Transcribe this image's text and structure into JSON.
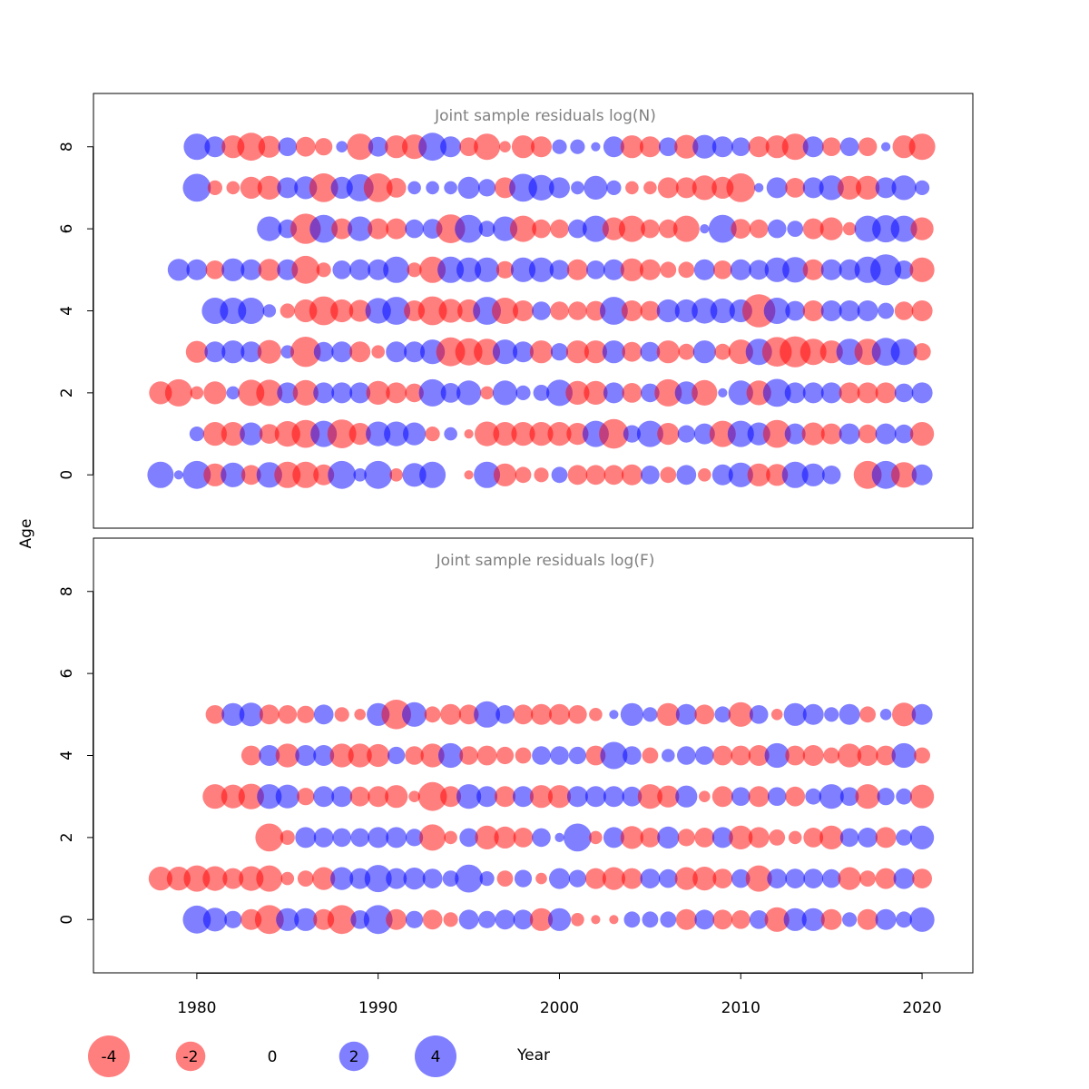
{
  "chart_data": {
    "type": "scatter",
    "style": "bubble",
    "xlabel": "Year",
    "ylabel": "Age",
    "xlim": [
      1974.3,
      2022.8
    ],
    "ylim": [
      -1.3,
      9.3
    ],
    "xticks": [
      "1980",
      "1990",
      "2000",
      "2010",
      "2020"
    ],
    "yticks": [
      "0",
      "2",
      "4",
      "6",
      "8"
    ],
    "colors": {
      "negative": "#ff0000",
      "positive": "#0000ff",
      "opacity": 0.5,
      "frame": "#000000",
      "title": "#808080"
    },
    "years_start": 1977,
    "years_end": 2020,
    "legend": {
      "placement": "bottom",
      "entries": [
        {
          "value": -4,
          "label": "-4"
        },
        {
          "value": -2,
          "label": "-2"
        },
        {
          "value": 0,
          "label": "0"
        },
        {
          "value": 2,
          "label": "2"
        },
        {
          "value": 4,
          "label": "4"
        }
      ]
    },
    "panels": [
      {
        "title": "Joint sample residuals log(N)",
        "ages": [
          0,
          1,
          2,
          3,
          4,
          5,
          6,
          7,
          8
        ],
        "residuals": [
          [
            1.6,
            0.2,
            1.8,
            -1.2,
            1.4,
            -0.9,
            1.5,
            -1.6,
            -1.6,
            -1.0,
            1.8,
            0.4,
            1.8,
            -0.4,
            1.3,
            1.6,
            0.0,
            -0.2,
            1.6,
            -1.2,
            -0.6,
            -0.5,
            0.6,
            -0.9,
            -0.9,
            -0.9,
            -1.0,
            0.8,
            -0.6,
            0.9,
            -0.4,
            1.0,
            1.4,
            -1.2,
            -1.1,
            1.6,
            1.2,
            0.8,
            0.0,
            -1.8,
            1.8,
            -1.5,
            1.0
          ],
          [
            0.5,
            -1.3,
            -1.3,
            1.2,
            -0.9,
            -1.5,
            -1.8,
            1.6,
            -1.9,
            -1.1,
            1.4,
            1.4,
            1.2,
            -0.5,
            0.4,
            -0.2,
            -1.4,
            -1.3,
            -1.3,
            -1.3,
            -1.3,
            -1.1,
            1.6,
            -2.0,
            0.7,
            1.6,
            -1.1,
            0.7,
            1.0,
            -1.6,
            1.6,
            1.2,
            -1.8,
            1.0,
            -1.2,
            -1.0,
            1.0,
            -0.8,
            1.0,
            0.8,
            -1.3
          ],
          [
            -1.2,
            -1.7,
            -0.4,
            -1.2,
            0.4,
            -1.6,
            -1.6,
            1.0,
            -1.5,
            1.0,
            1.0,
            1.0,
            -1.3,
            -1.0,
            -0.8,
            1.7,
            0.9,
            1.4,
            -0.4,
            1.4,
            0.5,
            0.6,
            1.6,
            -1.3,
            -1.3,
            1.0,
            -0.9,
            0.8,
            -1.7,
            1.2,
            -1.5,
            0.2,
            1.4,
            -1.4,
            1.8,
            1.0,
            1.0,
            1.0,
            -1.0,
            -1.0,
            -1.0,
            0.8,
            1.0
          ],
          [
            -1.1,
            1.0,
            1.2,
            1.0,
            -1.3,
            0.4,
            -2.1,
            0.9,
            1.0,
            -1.0,
            -0.4,
            1.0,
            1.0,
            1.4,
            -1.9,
            -1.7,
            -1.6,
            1.4,
            1.0,
            -1.2,
            0.7,
            -1.2,
            -1.2,
            1.2,
            -0.9,
            0.9,
            -1.2,
            -0.6,
            1.2,
            -0.6,
            -1.4,
            1.6,
            -2.0,
            -2.2,
            -1.6,
            -1.2,
            1.6,
            -1.6,
            1.8,
            1.6,
            -0.7
          ],
          [
            1.6,
            1.6,
            1.6,
            0.4,
            -0.5,
            -1.2,
            -1.9,
            -1.2,
            -1.1,
            1.5,
            1.8,
            -1.0,
            -1.9,
            -1.3,
            -1.2,
            1.8,
            -1.6,
            -1.0,
            0.8,
            -0.8,
            -0.8,
            -0.9,
            1.8,
            -1.0,
            -0.9,
            1.2,
            1.2,
            1.5,
            1.4,
            1.2,
            -2.5,
            1.6,
            0.9,
            -1.0,
            1.0,
            1.0,
            1.0,
            0.6,
            -0.8,
            -1.0
          ],
          [
            1.1,
            1.0,
            -0.8,
            1.2,
            1.0,
            -1.1,
            1.0,
            -1.8,
            -0.5,
            0.8,
            1.0,
            1.0,
            1.6,
            -0.5,
            -1.6,
            1.6,
            1.4,
            1.4,
            -0.7,
            1.4,
            1.4,
            0.9,
            -1.0,
            0.8,
            1.0,
            -1.2,
            -1.0,
            -0.6,
            -0.6,
            1.0,
            -0.8,
            1.0,
            0.9,
            1.4,
            1.5,
            -1.0,
            1.0,
            1.0,
            1.6,
            2.2,
            0.8,
            -1.4
          ],
          [
            1.4,
            0.8,
            -2.1,
            1.8,
            -1.0,
            1.4,
            -1.0,
            -1.0,
            0.8,
            0.9,
            -1.9,
            1.8,
            0.6,
            1.4,
            -1.6,
            -0.8,
            -0.8,
            0.8,
            1.6,
            -1.2,
            -1.6,
            -0.8,
            -0.8,
            -1.6,
            0.2,
            1.8,
            -0.9,
            -0.8,
            0.8,
            0.6,
            -1.0,
            -1.2,
            -0.4,
            1.6,
            1.7,
            1.6,
            -1.2
          ],
          [
            1.8,
            -0.5,
            -0.4,
            -1.1,
            -1.3,
            1.0,
            1.2,
            -1.9,
            1.1,
            1.7,
            -1.9,
            -0.9,
            0.4,
            0.4,
            0.4,
            1.1,
            0.7,
            -1.0,
            1.8,
            1.5,
            1.0,
            0.4,
            1.3,
            0.5,
            -0.4,
            -0.4,
            -1.0,
            -1.0,
            -1.4,
            -1.1,
            -1.9,
            0.2,
            1.0,
            -0.9,
            1.0,
            1.4,
            -1.3,
            -1.3,
            1.0,
            1.4,
            0.5
          ],
          [
            1.6,
            1.0,
            -1.2,
            -1.8,
            -1.1,
            0.8,
            -0.9,
            -0.7,
            0.3,
            -1.6,
            0.9,
            -1.2,
            -1.4,
            1.8,
            1.0,
            -0.8,
            -1.6,
            -0.3,
            -1.2,
            -1.0,
            0.5,
            0.5,
            0.2,
            1.0,
            -1.2,
            -1.0,
            0.8,
            -1.3,
            1.3,
            1.0,
            0.8,
            -1.0,
            -1.2,
            -1.6,
            1.0,
            -0.8,
            0.8,
            -0.8,
            0.2,
            -1.2,
            -1.6
          ]
        ]
      },
      {
        "title": "Joint sample residuals log(F)",
        "ages": [
          0,
          1,
          2,
          3,
          4,
          5
        ],
        "residuals": [
          [
            1.8,
            1.3,
            0.7,
            -1.0,
            -1.9,
            1.2,
            1.2,
            -1.0,
            -1.9,
            0.8,
            1.9,
            -1.0,
            0.7,
            -0.9,
            -0.5,
            0.9,
            0.7,
            0.9,
            0.9,
            -1.2,
            1.2,
            -0.4,
            -0.2,
            -0.2,
            0.6,
            0.6,
            0.6,
            -1.0,
            0.9,
            -0.9,
            -0.8,
            0.8,
            -1.4,
            1.2,
            1.2,
            -1.0,
            0.5,
            -1.0,
            1.0,
            0.6,
            1.4
          ],
          [
            -1.3,
            -1.3,
            -1.6,
            -1.4,
            -1.0,
            -1.4,
            -1.6,
            -0.4,
            -0.6,
            -1.2,
            1.2,
            1.0,
            1.7,
            1.0,
            1.1,
            0.9,
            0.6,
            1.8,
            0.5,
            -0.6,
            0.7,
            -0.3,
            1.0,
            0.7,
            -1.0,
            -1.2,
            -1.0,
            0.9,
            0.8,
            -1.2,
            -1.3,
            -0.9,
            0.8,
            -1.6,
            0.9,
            0.9,
            0.9,
            0.8,
            -1.2,
            -0.6,
            -1.0,
            1.0,
            -0.9
          ],
          [
            -1.8,
            -0.5,
            1.0,
            0.9,
            0.8,
            0.8,
            1.0,
            1.0,
            0.7,
            -1.6,
            -0.4,
            0.8,
            -1.3,
            -1.1,
            -0.9,
            0.8,
            0.2,
            1.8,
            -0.4,
            1.0,
            -1.2,
            -0.9,
            1.1,
            -0.7,
            -0.9,
            1.0,
            -1.3,
            -1.0,
            -0.6,
            -0.4,
            -0.9,
            -1.3,
            0.8,
            0.9,
            -1.0,
            0.6,
            1.3
          ],
          [
            -1.4,
            -1.3,
            -1.5,
            1.4,
            1.3,
            -0.7,
            1.0,
            1.0,
            -0.9,
            -1.0,
            -1.2,
            -0.3,
            -1.9,
            -1.0,
            1.4,
            1.0,
            -1.0,
            1.0,
            -1.2,
            -1.2,
            1.0,
            1.0,
            1.0,
            0.9,
            -1.4,
            -1.1,
            1.1,
            -0.3,
            -1.0,
            0.8,
            -1.0,
            0.8,
            -0.9,
            0.6,
            1.4,
            0.8,
            -1.4,
            0.7,
            0.6,
            -1.3
          ],
          [
            -0.9,
            1.0,
            -1.3,
            1.0,
            1.0,
            -1.3,
            -1.3,
            -1.2,
            0.7,
            -0.8,
            -1.3,
            1.4,
            -0.8,
            -0.9,
            -0.7,
            -0.6,
            0.8,
            0.8,
            0.7,
            -0.9,
            1.7,
            0.8,
            -0.6,
            0.4,
            0.8,
            0.8,
            -0.9,
            -0.9,
            -1.0,
            1.4,
            -0.9,
            -1.0,
            -0.6,
            -1.3,
            -1.0,
            -0.9,
            1.4,
            -0.6
          ],
          [
            -0.8,
            1.2,
            1.3,
            -0.9,
            -0.8,
            -0.7,
            0.9,
            -0.5,
            -0.3,
            1.2,
            -2.0,
            1.4,
            -0.6,
            -1.0,
            -0.9,
            1.6,
            0.8,
            -0.9,
            -1.0,
            -1.0,
            -0.8,
            -0.4,
            0.2,
            1.2,
            0.5,
            -1.2,
            1.0,
            -0.9,
            0.6,
            -1.4,
            0.8,
            -0.3,
            1.2,
            1.0,
            0.5,
            1.0,
            -0.6,
            0.3,
            -1.3,
            1.0
          ]
        ]
      }
    ]
  }
}
